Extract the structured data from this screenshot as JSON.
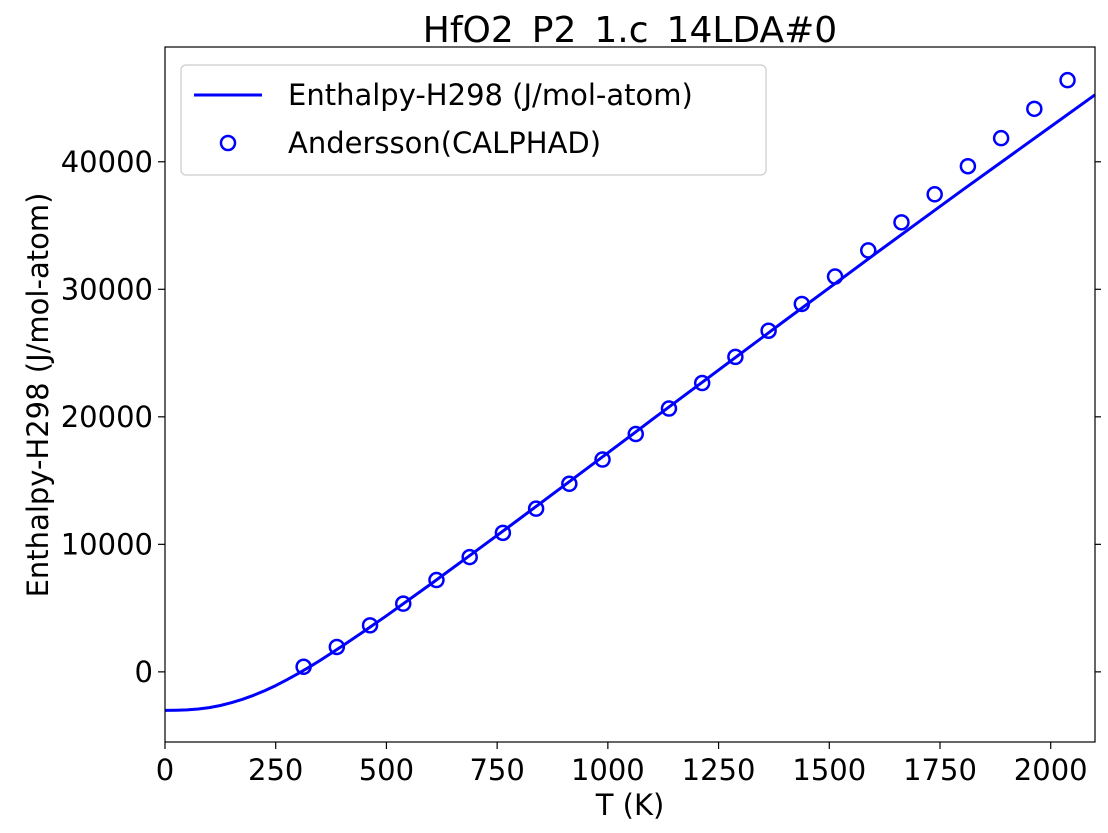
{
  "chart_data": {
    "type": "line",
    "title": "HfO2_P2_1.c_14LDA#0",
    "xlabel": "T (K)",
    "ylabel": "Enthalpy-H298 (J/mol-atom)",
    "xlim": [
      0,
      2100
    ],
    "ylim": [
      -5500,
      49000
    ],
    "xticks": [
      0,
      250,
      500,
      750,
      1000,
      1250,
      1500,
      1750,
      2000
    ],
    "yticks": [
      0,
      10000,
      20000,
      30000,
      40000
    ],
    "legend_position": "top-left",
    "grid": false,
    "series": [
      {
        "name": "Enthalpy-H298 (J/mol-atom)",
        "style": "line",
        "color": "#0000ff",
        "x": [
          0,
          25,
          50,
          75,
          100,
          125,
          150,
          175,
          200,
          225,
          250,
          275,
          298,
          325,
          350,
          400,
          450,
          500,
          600,
          700,
          800,
          900,
          1000,
          1100,
          1200,
          1300,
          1400,
          1500,
          1600,
          1700,
          1800,
          1900,
          2000,
          2100
        ],
        "y": [
          -3020,
          -3010,
          -2980,
          -2910,
          -2800,
          -2640,
          -2420,
          -2150,
          -1840,
          -1480,
          -1080,
          -620,
          -180,
          360,
          890,
          2020,
          3200,
          4400,
          6880,
          9420,
          11990,
          14580,
          17180,
          19780,
          22370,
          24960,
          27550,
          30120,
          32690,
          35230,
          37760,
          40260,
          42760,
          45250
        ]
      },
      {
        "name": "Andersson(CALPHAD)",
        "style": "markers",
        "color": "#0000ff",
        "x": [
          313,
          388,
          463,
          538,
          613,
          688,
          763,
          838,
          913,
          988,
          1063,
          1138,
          1213,
          1288,
          1363,
          1438,
          1513,
          1588,
          1663,
          1738,
          1813,
          1888,
          1963,
          2038
        ],
        "y": [
          400,
          1950,
          3650,
          5350,
          7200,
          9000,
          10900,
          12800,
          14750,
          16650,
          18650,
          20650,
          22650,
          24700,
          26750,
          28850,
          31000,
          33050,
          35250,
          37450,
          39650,
          41850,
          44150,
          46400
        ]
      }
    ]
  }
}
